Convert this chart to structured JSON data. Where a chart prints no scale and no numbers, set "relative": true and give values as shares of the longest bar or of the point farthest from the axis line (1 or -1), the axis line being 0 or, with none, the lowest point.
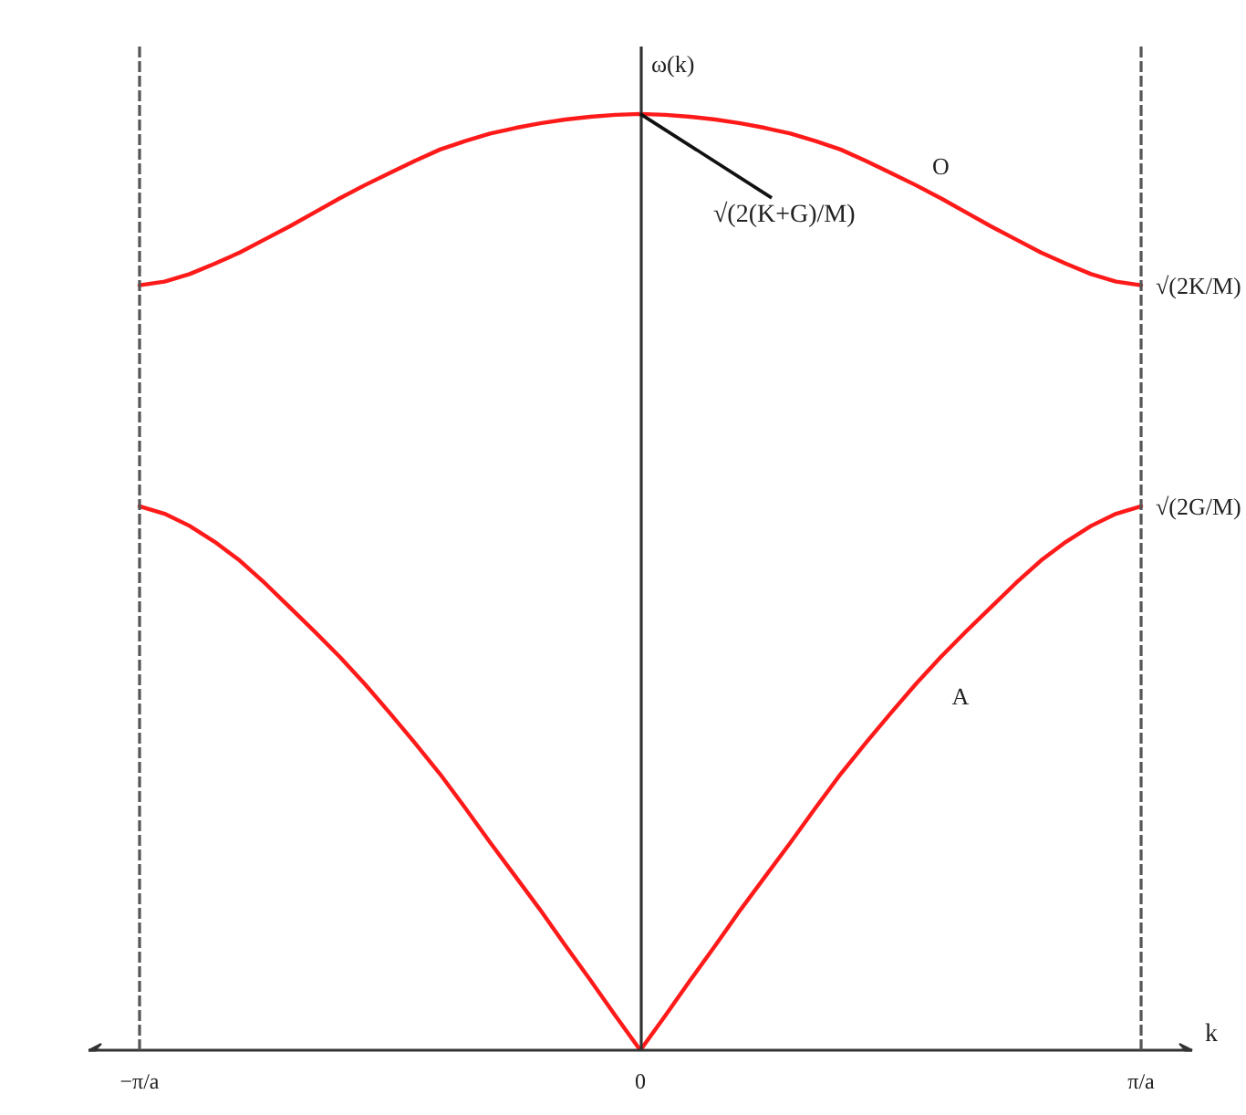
{
  "chart_data": {
    "type": "line",
    "relative": true,
    "xlabel": "k",
    "ylabel": "ω(k)",
    "categories": [
      "−π/a",
      null,
      null,
      null,
      null,
      null,
      null,
      null,
      null,
      null,
      null,
      null,
      null,
      null,
      null,
      null,
      null,
      null,
      null,
      null,
      "0",
      null,
      null,
      null,
      null,
      null,
      null,
      null,
      null,
      null,
      null,
      null,
      null,
      null,
      null,
      null,
      null,
      null,
      null,
      null,
      "π/a"
    ],
    "series": [
      {
        "name": "O",
        "color": "#ff1a1a",
        "values": [
          0.817,
          0.821,
          0.829,
          0.84,
          0.852,
          0.866,
          0.88,
          0.895,
          0.91,
          0.924,
          0.937,
          0.95,
          0.962,
          0.971,
          0.979,
          0.985,
          0.99,
          0.994,
          0.997,
          0.999,
          1.0,
          0.999,
          0.997,
          0.994,
          0.99,
          0.985,
          0.979,
          0.971,
          0.962,
          0.95,
          0.937,
          0.924,
          0.91,
          0.895,
          0.88,
          0.866,
          0.852,
          0.84,
          0.829,
          0.821,
          0.817
        ]
      },
      {
        "name": "A",
        "color": "#ff1a1a",
        "values": [
          0.581,
          0.573,
          0.56,
          0.543,
          0.523,
          0.499,
          0.473,
          0.447,
          0.42,
          0.391,
          0.36,
          0.328,
          0.295,
          0.259,
          0.222,
          0.186,
          0.15,
          0.112,
          0.075,
          0.037,
          0,
          0.037,
          0.075,
          0.112,
          0.15,
          0.186,
          0.222,
          0.259,
          0.295,
          0.328,
          0.36,
          0.391,
          0.42,
          0.447,
          0.473,
          0.499,
          0.523,
          0.543,
          0.56,
          0.573,
          0.581
        ]
      }
    ],
    "ref_lines": [
      {
        "axis": "x",
        "value": "−π/a",
        "color": "#555555",
        "line_style": "dashed"
      },
      {
        "axis": "x",
        "value": "π/a",
        "color": "#555555",
        "line_style": "dashed"
      }
    ],
    "annotations": [
      {
        "text": "√(2(K+G)/M)",
        "x": "0",
        "y": 1.0
      },
      {
        "text": "√(2K/M)",
        "x": "π/a",
        "y": 0.817
      },
      {
        "text": "√(2G/M)",
        "x": "π/a",
        "y": 0.581
      }
    ]
  }
}
